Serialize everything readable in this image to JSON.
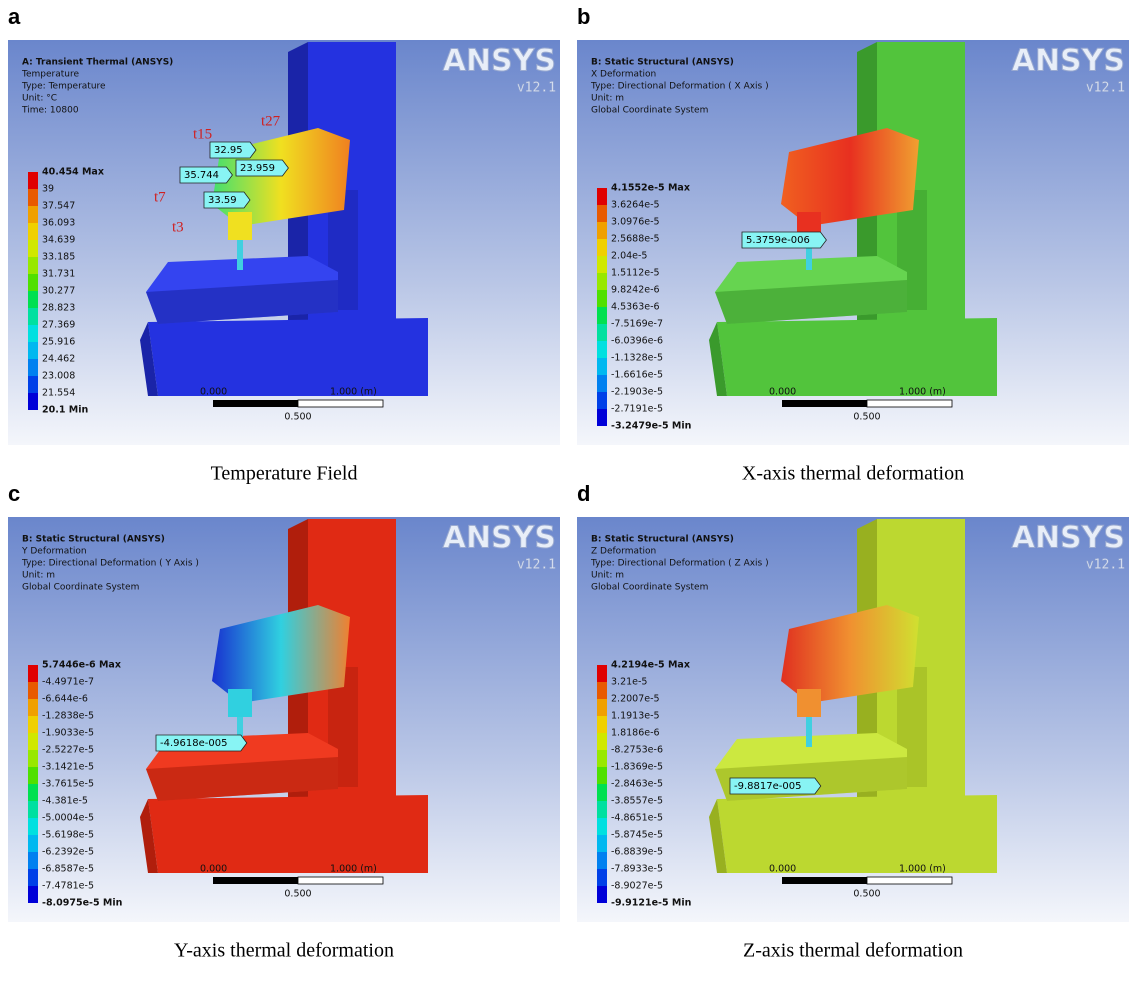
{
  "figure": {
    "panels": [
      {
        "letter": "a",
        "caption": "Temperature Field",
        "header": [
          "A: Transient Thermal (ANSYS)",
          "Temperature",
          "Type: Temperature",
          "Unit: °C",
          "Time: 10800"
        ],
        "legend": [
          "40.454 Max",
          "39",
          "37.547",
          "36.093",
          "34.639",
          "33.185",
          "31.731",
          "30.277",
          "28.823",
          "27.369",
          "25.916",
          "24.462",
          "23.008",
          "21.554",
          "20.1 Min"
        ],
        "probes": [
          "32.95",
          "23.959",
          "35.744",
          "33.59"
        ],
        "tags": [
          "t27",
          "t15",
          "t7",
          "t3"
        ],
        "scale": [
          "0.000",
          "1.000 (m)",
          "0.500"
        ],
        "logo": "ANSYS",
        "version": "v12.1"
      },
      {
        "letter": "b",
        "caption": "X-axis thermal deformation",
        "header": [
          "B: Static Structural (ANSYS)",
          "X Deformation",
          "Type: Directional Deformation ( X Axis )",
          "Unit: m",
          "Global Coordinate System"
        ],
        "legend": [
          "4.1552e-5 Max",
          "3.6264e-5",
          "3.0976e-5",
          "2.5688e-5",
          "2.04e-5",
          "1.5112e-5",
          "9.8242e-6",
          "4.5363e-6",
          "-7.5169e-7",
          "-6.0396e-6",
          "-1.1328e-5",
          "-1.6616e-5",
          "-2.1903e-5",
          "-2.7191e-5",
          "-3.2479e-5 Min"
        ],
        "probes": [
          "5.3759e-006"
        ],
        "scale": [
          "0.000",
          "1.000 (m)",
          "0.500"
        ],
        "logo": "ANSYS",
        "version": "v12.1"
      },
      {
        "letter": "c",
        "caption": "Y-axis thermal deformation",
        "header": [
          "B: Static Structural (ANSYS)",
          "Y Deformation",
          "Type: Directional Deformation ( Y Axis )",
          "Unit: m",
          "Global Coordinate System"
        ],
        "legend": [
          "5.7446e-6 Max",
          "-4.4971e-7",
          "-6.644e-6",
          "-1.2838e-5",
          "-1.9033e-5",
          "-2.5227e-5",
          "-3.1421e-5",
          "-3.7615e-5",
          "-4.381e-5",
          "-5.0004e-5",
          "-5.6198e-5",
          "-6.2392e-5",
          "-6.8587e-5",
          "-7.4781e-5",
          "-8.0975e-5 Min"
        ],
        "probes": [
          "-4.9618e-005"
        ],
        "scale": [
          "0.000",
          "1.000 (m)",
          "0.500"
        ],
        "logo": "ANSYS",
        "version": "v12.1"
      },
      {
        "letter": "d",
        "caption": "Z-axis thermal deformation",
        "header": [
          "B: Static Structural (ANSYS)",
          "Z Deformation",
          "Type: Directional Deformation ( Z Axis )",
          "Unit: m",
          "Global Coordinate System"
        ],
        "legend": [
          "4.2194e-5 Max",
          "3.21e-5",
          "2.2007e-5",
          "1.1913e-5",
          "1.8186e-6",
          "-8.2753e-6",
          "-1.8369e-5",
          "-2.8463e-5",
          "-3.8557e-5",
          "-4.8651e-5",
          "-5.8745e-5",
          "-6.8839e-5",
          "-7.8933e-5",
          "-8.9027e-5",
          "-9.9121e-5 Min"
        ],
        "probes": [
          "-9.8817e-005"
        ],
        "scale": [
          "0.000",
          "1.000 (m)",
          "0.500"
        ],
        "logo": "ANSYS",
        "version": "v12.1"
      }
    ]
  }
}
